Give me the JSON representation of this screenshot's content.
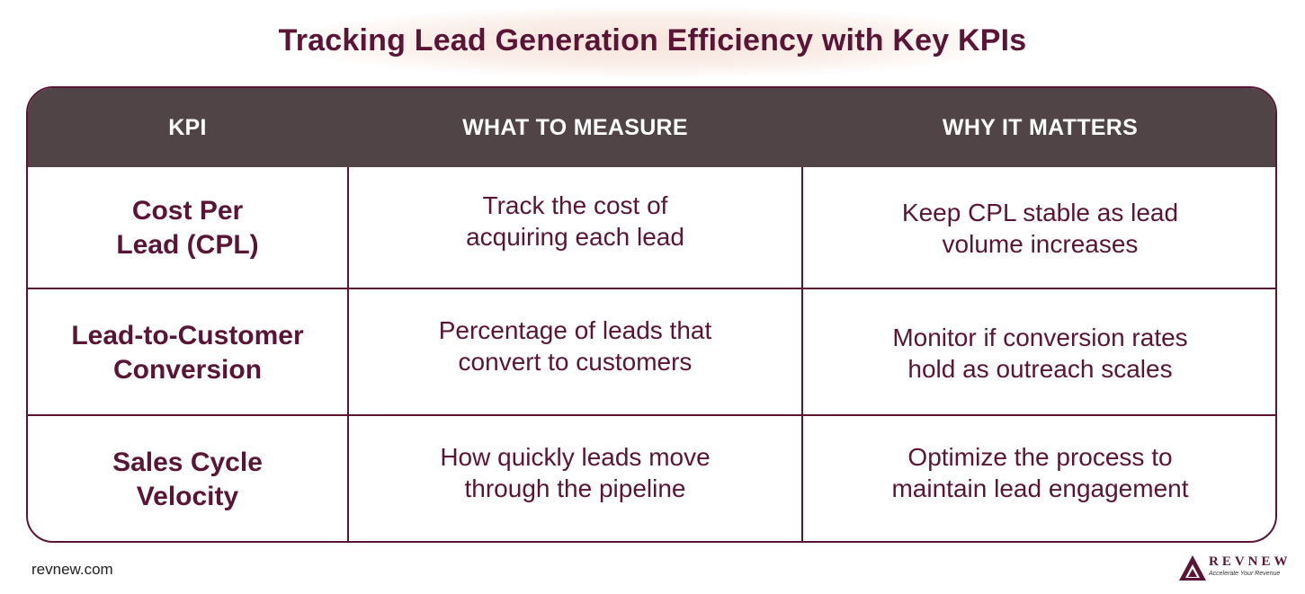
{
  "title": "Tracking Lead Generation Efficiency with Key KPIs",
  "headers": [
    "KPI",
    "WHAT TO MEASURE",
    "WHY IT MATTERS"
  ],
  "rows": [
    {
      "kpi_line1": "Cost Per",
      "kpi_line2": "Lead (CPL)",
      "measure_line1": "Track the cost of",
      "measure_line2": "acquiring each lead",
      "matters_line1": "Keep CPL stable as lead",
      "matters_line2": "volume increases"
    },
    {
      "kpi_line1": "Lead-to-Customer",
      "kpi_line2": "Conversion",
      "measure_line1": "Percentage of leads that",
      "measure_line2": "convert to customers",
      "matters_line1": "Monitor if conversion rates",
      "matters_line2": "hold as outreach scales"
    },
    {
      "kpi_line1": "Sales Cycle",
      "kpi_line2": "Velocity",
      "measure_line1": "How quickly leads move",
      "measure_line2": "through the pipeline",
      "matters_line1": "Optimize the process to",
      "matters_line2": "maintain lead engagement"
    }
  ],
  "footer": {
    "url": "revnew.com",
    "logo_word": "REVNEW",
    "logo_tagline": "Accelerate Your Revenue",
    "logo_icon": "mountain-logo-icon"
  },
  "colors": {
    "primary": "#5a1436",
    "header_bg": "#514446",
    "header_text": "#ffffff"
  }
}
